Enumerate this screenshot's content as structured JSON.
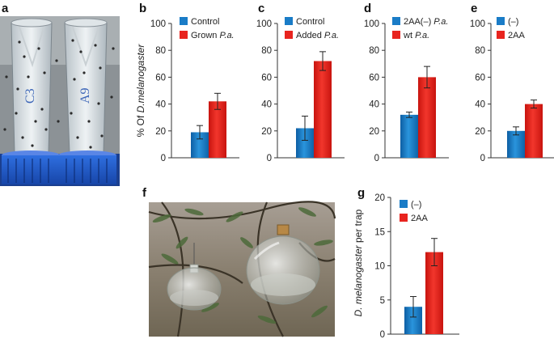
{
  "figure": {
    "panel_labels": {
      "a": "a",
      "b": "b",
      "c": "c",
      "d": "d",
      "e": "e",
      "f": "f",
      "g": "g"
    },
    "photo_a": {
      "kind": "photograph",
      "subject": "two fly-trap tubes with blue caps"
    },
    "photo_f": {
      "kind": "photograph",
      "subject": "two glass bottle traps hanging in an olive tree"
    },
    "colors": {
      "blue": "#1a7cc7",
      "red": "#e8241f"
    }
  },
  "chart_data": [
    {
      "id": "b",
      "type": "bar",
      "ylabel_parts": [
        "% Of ",
        "D.melanogaster"
      ],
      "ylim": [
        0,
        100
      ],
      "yticks": [
        "0",
        "20",
        "40",
        "60",
        "80",
        "100"
      ],
      "series": [
        {
          "name": "Control",
          "name_parts": [
            "Control"
          ],
          "value": 19,
          "error": 5,
          "color": "#1a7cc7"
        },
        {
          "name": "Grown P.a.",
          "name_parts": [
            "Grown ",
            "P.a."
          ],
          "value": 42,
          "error": 6,
          "color": "#e8241f"
        }
      ]
    },
    {
      "id": "c",
      "type": "bar",
      "ylim": [
        0,
        100
      ],
      "yticks": [
        "0",
        "20",
        "40",
        "60",
        "80",
        "100"
      ],
      "series": [
        {
          "name": "Control",
          "name_parts": [
            "Control"
          ],
          "value": 22,
          "error": 9,
          "color": "#1a7cc7"
        },
        {
          "name": "Added P.a.",
          "name_parts": [
            "Added ",
            "P.a."
          ],
          "value": 72,
          "error": 7,
          "color": "#e8241f"
        }
      ]
    },
    {
      "id": "d",
      "type": "bar",
      "ylim": [
        0,
        100
      ],
      "yticks": [
        "0",
        "20",
        "40",
        "60",
        "80",
        "100"
      ],
      "series": [
        {
          "name": "2AA(–) P.a.",
          "name_parts": [
            "2AA(–) ",
            "P.a."
          ],
          "value": 32,
          "error": 2,
          "color": "#1a7cc7"
        },
        {
          "name": "wt P.a.",
          "name_parts": [
            "wt ",
            "P.a."
          ],
          "value": 60,
          "error": 8,
          "color": "#e8241f"
        }
      ]
    },
    {
      "id": "e",
      "type": "bar",
      "ylim": [
        0,
        100
      ],
      "yticks": [
        "0",
        "20",
        "40",
        "60",
        "80",
        "100"
      ],
      "series": [
        {
          "name": "(–)",
          "name_parts": [
            "(–)"
          ],
          "value": 20,
          "error": 3,
          "color": "#1a7cc7"
        },
        {
          "name": "2AA",
          "name_parts": [
            "2AA"
          ],
          "value": 40,
          "error": 3,
          "color": "#e8241f"
        }
      ]
    },
    {
      "id": "g",
      "type": "bar",
      "ylabel_parts": [
        "D. melanogaster",
        " per trap"
      ],
      "ylim": [
        0,
        20
      ],
      "yticks": [
        "0",
        "5",
        "10",
        "15",
        "20"
      ],
      "series": [
        {
          "name": "(–)",
          "name_parts": [
            "(–)"
          ],
          "value": 4,
          "error": 1.5,
          "color": "#1a7cc7"
        },
        {
          "name": "2AA",
          "name_parts": [
            "2AA"
          ],
          "value": 12,
          "error": 2,
          "color": "#e8241f"
        }
      ]
    }
  ]
}
